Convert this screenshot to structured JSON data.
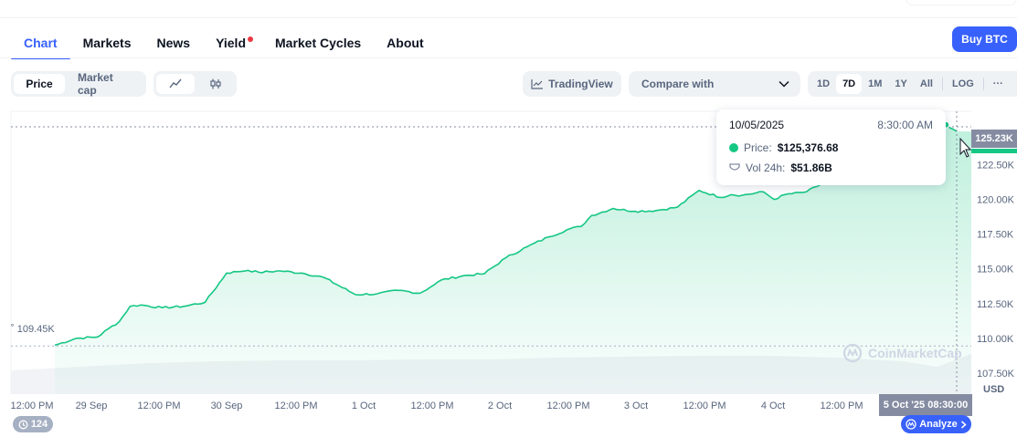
{
  "nav": {
    "tabs": [
      {
        "label": "Chart",
        "active": true
      },
      {
        "label": "Markets"
      },
      {
        "label": "News"
      },
      {
        "label": "Yield",
        "dot": true
      },
      {
        "label": "Market Cycles"
      },
      {
        "label": "About"
      }
    ],
    "buy_button": "Buy BTC"
  },
  "toolbar": {
    "metric_tabs": [
      "Price",
      "Market cap"
    ],
    "metric_selected": "Price",
    "chart_type_icons": [
      "line-chart-icon",
      "candlestick-icon"
    ],
    "tradingview_label": "TradingView",
    "compare_label": "Compare with",
    "ranges": [
      "1D",
      "7D",
      "1M",
      "1Y",
      "All"
    ],
    "range_selected": "7D",
    "log_label": "LOG",
    "more_label": "···"
  },
  "tooltip": {
    "date": "10/05/2025",
    "time": "8:30:00 AM",
    "price_label": "Price:",
    "price_value": "$125,376.68",
    "vol_label": "Vol 24h:",
    "vol_value": "$51.86B"
  },
  "chart_data": {
    "type": "area",
    "y_ticks": [
      "122.50K",
      "120.00K",
      "117.50K",
      "115.00K",
      "112.50K",
      "110.00K",
      "107.50K"
    ],
    "y_tick_values": [
      122500,
      120000,
      117500,
      115000,
      112500,
      110000,
      107500
    ],
    "ylim": [
      105980,
      126350
    ],
    "x_ticks": [
      "12:00 PM",
      "29 Sep",
      "12:00 PM",
      "30 Sep",
      "12:00 PM",
      "1 Oct",
      "12:00 PM",
      "2 Oct",
      "12:00 PM",
      "3 Oct",
      "12:00 PM",
      "4 Oct",
      "12:00 PM"
    ],
    "current_price_label": "125.23K",
    "low_price_label": "109.45K",
    "unit_label": "USD",
    "crosshair_date": "5 Oct '25 08:30:00",
    "series": [
      {
        "color": "#16c784",
        "x_hours": [
          0,
          4,
          8,
          10,
          12,
          14,
          16,
          20,
          24,
          28,
          32,
          34,
          36,
          38,
          42,
          46,
          50,
          56,
          60,
          64,
          68,
          70,
          72,
          76,
          80,
          84,
          88,
          92,
          96,
          98,
          100,
          104,
          108,
          112,
          116,
          120,
          124,
          126,
          128,
          132,
          134,
          136,
          140,
          144,
          148,
          152,
          156,
          158,
          160,
          164,
          166,
          168
        ],
        "values": [
          109500,
          110000,
          110100,
          110700,
          111200,
          112300,
          112400,
          112200,
          112300,
          112600,
          114700,
          114800,
          114900,
          114750,
          114850,
          114700,
          114400,
          113150,
          113200,
          113450,
          113250,
          113700,
          114200,
          114500,
          114650,
          115800,
          116600,
          117300,
          117900,
          118050,
          118850,
          119350,
          119150,
          119200,
          119450,
          120650,
          120150,
          120350,
          120300,
          120550,
          120000,
          120350,
          120550,
          121350,
          122800,
          123150,
          123100,
          123950,
          124650,
          124350,
          125380,
          124900
        ]
      }
    ],
    "volume_x_hours": [
      0,
      12,
      24,
      36,
      48,
      60,
      72,
      84,
      96,
      108,
      120,
      132,
      144,
      150,
      156,
      162,
      168
    ],
    "volume_values": [
      26,
      30,
      34,
      36,
      37,
      37,
      38,
      38,
      40,
      41,
      42,
      42,
      40,
      38,
      36,
      30,
      44
    ]
  },
  "watermark": "CoinMarketCap",
  "history_count": "124",
  "analyze_label": "Analyze"
}
